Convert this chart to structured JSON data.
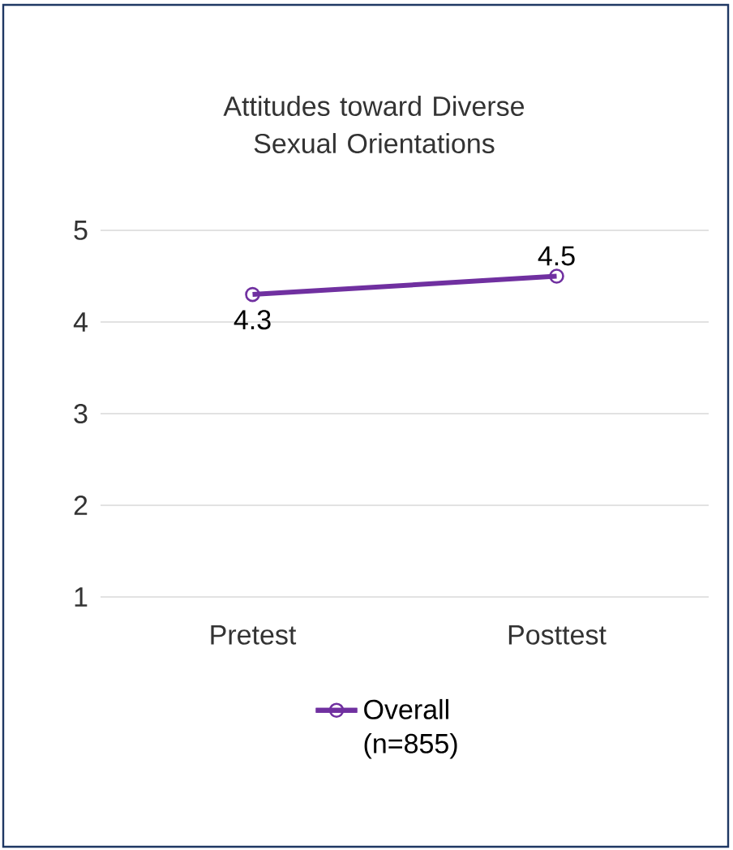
{
  "chart_data": {
    "type": "line",
    "title": "Attitudes toward Diverse Sexual Orientations",
    "categories": [
      "Pretest",
      "Posttest"
    ],
    "series": [
      {
        "name": "Overall (n=855)",
        "color": "#7030a0",
        "values": [
          4.3,
          4.5
        ]
      }
    ],
    "ylim": [
      1,
      5
    ],
    "yticks": [
      1,
      2,
      3,
      4,
      5
    ],
    "grid": "y",
    "legend": "bottom",
    "marker": "circle",
    "line_style": "solid",
    "data_labels": true
  }
}
